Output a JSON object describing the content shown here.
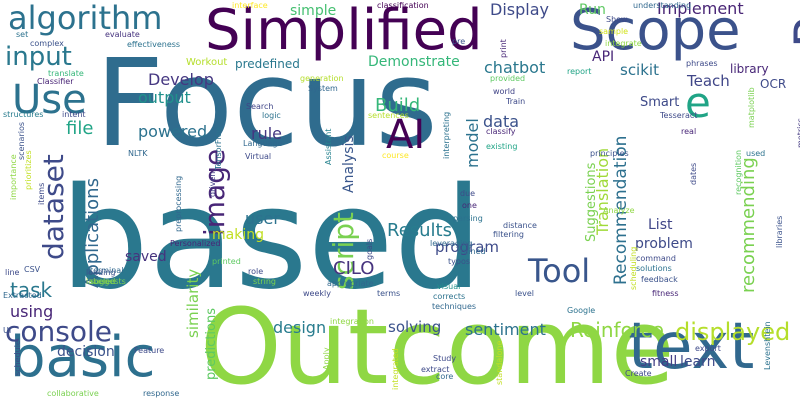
{
  "words": [
    {
      "text": "Focus",
      "color": "#2f6c8e"
    },
    {
      "text": "based",
      "color": "#2a788e"
    },
    {
      "text": "Outcome",
      "color": "#8fd744"
    },
    {
      "text": "Simplified",
      "color": "#440154"
    },
    {
      "text": "Scope",
      "color": "#3b528b"
    },
    {
      "text": "text",
      "color": "#31688e"
    },
    {
      "text": "basic",
      "color": "#2d708e"
    },
    {
      "text": "Python",
      "color": "#3e4a89"
    },
    {
      "text": "algorithm",
      "color": "#2c728e"
    },
    {
      "text": "AI",
      "color": "#440154"
    },
    {
      "text": "Use",
      "color": "#2c728e"
    },
    {
      "text": "input",
      "color": "#2a788e"
    },
    {
      "text": "e",
      "color": "#20a486"
    },
    {
      "text": "console",
      "color": "#3e4a89"
    },
    {
      "text": "Tool",
      "color": "#39568c"
    },
    {
      "text": "dataset",
      "color": "#3e4a89"
    },
    {
      "text": "image",
      "color": "#482677"
    },
    {
      "text": "script",
      "color": "#7ad151"
    },
    {
      "text": "displayed",
      "color": "#b5de2b"
    },
    {
      "text": "Reinforce",
      "color": "#8fd744"
    },
    {
      "text": "sentiment",
      "color": "#2c728e"
    },
    {
      "text": "Recommendation",
      "color": "#2d708e"
    },
    {
      "text": "recommending",
      "color": "#7ad151"
    },
    {
      "text": "Translation",
      "color": "#a0da39"
    },
    {
      "text": "Suggestions",
      "color": "#7ad151"
    },
    {
      "text": "Implement",
      "color": "#482475"
    },
    {
      "text": "Display",
      "color": "#3e4a89"
    },
    {
      "text": "Run",
      "color": "#5ec962"
    },
    {
      "text": "API",
      "color": "#482677"
    },
    {
      "text": "chatbot",
      "color": "#2a788e"
    },
    {
      "text": "Demonstrate",
      "color": "#35b779"
    },
    {
      "text": "scikit",
      "color": "#2c728e"
    },
    {
      "text": "Teach",
      "color": "#404688"
    },
    {
      "text": "Develop",
      "color": "#453781"
    },
    {
      "text": "output",
      "color": "#21918c"
    },
    {
      "text": "powered",
      "color": "#2c728e"
    },
    {
      "text": "rule",
      "color": "#453781"
    },
    {
      "text": "file",
      "color": "#20a486"
    },
    {
      "text": "Build",
      "color": "#35b779"
    },
    {
      "text": "data",
      "color": "#3b528b"
    },
    {
      "text": "model",
      "color": "#2c728e"
    },
    {
      "text": "Analysis",
      "color": "#39568c"
    },
    {
      "text": "Applications",
      "color": "#31688e"
    },
    {
      "text": "Results",
      "color": "#287c8e"
    },
    {
      "text": "CILO",
      "color": "#46337e"
    },
    {
      "text": "user",
      "color": "#2c728e"
    },
    {
      "text": "task",
      "color": "#2a788e"
    },
    {
      "text": "using",
      "color": "#482677"
    },
    {
      "text": "similarity",
      "color": "#7ad151"
    },
    {
      "text": "program",
      "color": "#3e4a89"
    },
    {
      "text": "problem",
      "color": "#3e4a89"
    },
    {
      "text": "List",
      "color": "#404688"
    },
    {
      "text": "design",
      "color": "#287c8e"
    },
    {
      "text": "solving",
      "color": "#3b528b"
    },
    {
      "text": "decision",
      "color": "#3b528b"
    },
    {
      "text": "learn",
      "color": "#3e4a89"
    },
    {
      "text": "small",
      "color": "#433e85"
    },
    {
      "text": "saved",
      "color": "#46337e"
    },
    {
      "text": "making",
      "color": "#c2df23"
    },
    {
      "text": "predictions",
      "color": "#5ec962"
    },
    {
      "text": "Smart",
      "color": "#3e4a89"
    },
    {
      "text": "library",
      "color": "#482677"
    },
    {
      "text": "OCR",
      "color": "#3e4a89"
    },
    {
      "text": "simple",
      "color": "#44bf70"
    },
    {
      "text": "predefined",
      "color": "#2a788e"
    },
    {
      "text": "Workout",
      "color": "#b5de2b"
    },
    {
      "text": "complex",
      "color": "#3b528b"
    },
    {
      "text": "evaluate",
      "color": "#46337e"
    },
    {
      "text": "effectiveness",
      "color": "#2c728e"
    },
    {
      "text": "interface",
      "color": "#fde725"
    },
    {
      "text": "classification",
      "color": "#440154"
    },
    {
      "text": "understanding",
      "color": "#31688e"
    },
    {
      "text": "sample",
      "color": "#d2e21b"
    },
    {
      "text": "integrate",
      "color": "#8fd744"
    },
    {
      "text": "Show",
      "color": "#3e4a89"
    },
    {
      "text": "phrases",
      "color": "#3e4a89"
    },
    {
      "text": "set",
      "color": "#2c728e"
    },
    {
      "text": "translate",
      "color": "#35b779"
    },
    {
      "text": "Classifier",
      "color": "#482475"
    },
    {
      "text": "generation",
      "color": "#b5de2b"
    },
    {
      "text": "System",
      "color": "#31688e"
    },
    {
      "text": "Assistant",
      "color": "#26828e"
    },
    {
      "text": "pre",
      "color": "#3b528b"
    },
    {
      "text": "print",
      "color": "#482777"
    },
    {
      "text": "provided",
      "color": "#5ec962"
    },
    {
      "text": "world",
      "color": "#414487"
    },
    {
      "text": "Train",
      "color": "#3e4a89"
    },
    {
      "text": "report",
      "color": "#20a486"
    },
    {
      "text": "Tesseract",
      "color": "#3e4a89"
    },
    {
      "text": "matplotlib",
      "color": "#7ad151"
    },
    {
      "text": "real",
      "color": "#482677"
    },
    {
      "text": "metrics",
      "color": "#443a83"
    },
    {
      "text": "structures",
      "color": "#287c8e"
    },
    {
      "text": "intent",
      "color": "#3e4a89"
    },
    {
      "text": "Search",
      "color": "#404688"
    },
    {
      "text": "logic",
      "color": "#2c728e"
    },
    {
      "text": "Language",
      "color": "#31688e"
    },
    {
      "text": "Virtual",
      "color": "#3e4a89"
    },
    {
      "text": "sentences",
      "color": "#b5de2b"
    },
    {
      "text": "course",
      "color": "#fde725"
    },
    {
      "text": "classify",
      "color": "#482677"
    },
    {
      "text": "existing",
      "color": "#20a486"
    },
    {
      "text": "interpreting",
      "color": "#2c728e"
    },
    {
      "text": "principles",
      "color": "#3b528b"
    },
    {
      "text": "used",
      "color": "#2c728e"
    },
    {
      "text": "recognition",
      "color": "#5ec962"
    },
    {
      "text": "importance",
      "color": "#8fd744"
    },
    {
      "text": "scenarios",
      "color": "#3b528b"
    },
    {
      "text": "prioritizes",
      "color": "#c2df23"
    },
    {
      "text": "items",
      "color": "#3e4a89"
    },
    {
      "text": "NLTK",
      "color": "#31688e"
    },
    {
      "text": "preprocessing",
      "color": "#31688e"
    },
    {
      "text": "TensorFlow",
      "color": "#2c728e"
    },
    {
      "text": "driven",
      "color": "#433e85"
    },
    {
      "text": "Personalized",
      "color": "#482677"
    },
    {
      "text": "terminal",
      "color": "#31688e"
    },
    {
      "text": "labeled",
      "color": "#8fd744"
    },
    {
      "text": "CSV",
      "color": "#3b528b"
    },
    {
      "text": "loading",
      "color": "#3b528b"
    },
    {
      "text": "line",
      "color": "#3e4a89"
    },
    {
      "text": "suggests",
      "color": "#7ad151"
    },
    {
      "text": "Extracted",
      "color": "#31688e"
    },
    {
      "text": "UI",
      "color": "#3b528b"
    },
    {
      "text": "schedule",
      "color": "#3e4a89"
    },
    {
      "text": "collaborative",
      "color": "#7ad151"
    },
    {
      "text": "printed",
      "color": "#5ec962"
    },
    {
      "text": "role",
      "color": "#3e4a89"
    },
    {
      "text": "string",
      "color": "#7ad151"
    },
    {
      "text": "Feature",
      "color": "#3e4a89"
    },
    {
      "text": "response",
      "color": "#31688e"
    },
    {
      "text": "weekly",
      "color": "#3e4a89"
    },
    {
      "text": "Apply",
      "color": "#8fd744"
    },
    {
      "text": "appropriate",
      "color": "#31688e"
    },
    {
      "text": "terms",
      "color": "#3b528b"
    },
    {
      "text": "integration",
      "color": "#8fd744"
    },
    {
      "text": "visual",
      "color": "#21918c"
    },
    {
      "text": "corrects",
      "color": "#2c728e"
    },
    {
      "text": "techniques",
      "color": "#31688e"
    },
    {
      "text": "leveraging",
      "color": "#31688e"
    },
    {
      "text": "trained",
      "color": "#31688e"
    },
    {
      "text": "typos",
      "color": "#3b528b"
    },
    {
      "text": "parsing",
      "color": "#2c728e"
    },
    {
      "text": "one",
      "color": "#482677"
    },
    {
      "text": "due",
      "color": "#3e4a89"
    },
    {
      "text": "goals",
      "color": "#3e4a89"
    },
    {
      "text": "distance",
      "color": "#3b528b"
    },
    {
      "text": "filtering",
      "color": "#3b528b"
    },
    {
      "text": "Analyze",
      "color": "#8fd744"
    },
    {
      "text": "scheduling",
      "color": "#c2df23"
    },
    {
      "text": "command",
      "color": "#3e4a89"
    },
    {
      "text": "solutions",
      "color": "#2c728e"
    },
    {
      "text": "feedback",
      "color": "#3b528b"
    },
    {
      "text": "fitness",
      "color": "#482677"
    },
    {
      "text": "Levenshtein",
      "color": "#2c728e"
    },
    {
      "text": "libraries",
      "color": "#3b528b"
    },
    {
      "text": "dates",
      "color": "#3e4a89"
    },
    {
      "text": "level",
      "color": "#3b528b"
    },
    {
      "text": "export",
      "color": "#3e4a89"
    },
    {
      "text": "Google",
      "color": "#2c728e"
    },
    {
      "text": "Create",
      "color": "#3e4a89"
    },
    {
      "text": "Study",
      "color": "#3e4a89"
    },
    {
      "text": "extract",
      "color": "#3e4a89"
    },
    {
      "text": "core",
      "color": "#31688e"
    },
    {
      "text": "standalone",
      "color": "#c2df23"
    },
    {
      "text": "integrated",
      "color": "#c2df23"
    }
  ]
}
